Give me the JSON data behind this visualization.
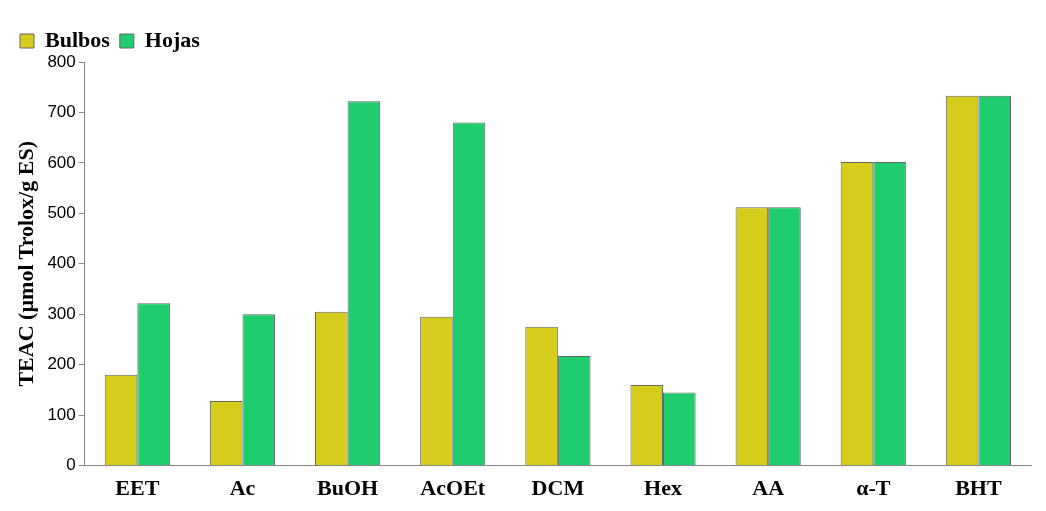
{
  "chart_data": {
    "type": "bar",
    "ylabel": "TEAC (µmol Trolox/g ES)",
    "categories": [
      "EET",
      "Ac",
      "BuOH",
      "AcOEt",
      "DCM",
      "Hex",
      "AA",
      "α-T",
      "BHT"
    ],
    "series": [
      {
        "name": "Bulbos",
        "color": "#d6cc1c",
        "values": [
          180,
          128,
          305,
          295,
          275,
          160,
          512,
          602,
          733
        ]
      },
      {
        "name": "Hojas",
        "color": "#1fcc6e",
        "values": [
          322,
          300,
          722,
          680,
          217,
          145,
          512,
          602,
          733
        ]
      }
    ],
    "ylim": [
      0,
      800
    ],
    "yticks": [
      0,
      100,
      200,
      300,
      400,
      500,
      600,
      700,
      800
    ],
    "grid": false,
    "legend": "top left"
  }
}
